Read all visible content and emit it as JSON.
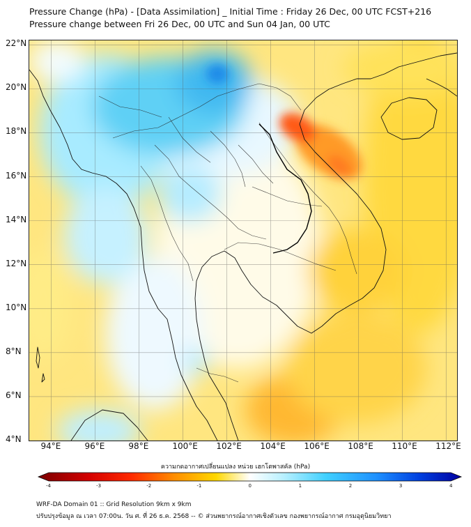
{
  "title": {
    "line1": "Pressure Change (hPa) - [Data Assimilation] _ Initial Time : Friday 26 Dec, 00 UTC FCST+216",
    "line2": "Pressure change between Fri 26 Dec, 00 UTC and Sun 04 Jan, 00 UTC"
  },
  "map": {
    "lon_range": [
      93,
      112.5
    ],
    "lat_range": [
      4,
      22.2
    ],
    "x_ticks": [
      "94°E",
      "96°E",
      "98°E",
      "100°E",
      "102°E",
      "104°E",
      "106°E",
      "108°E",
      "110°E",
      "112°E"
    ],
    "x_tick_values": [
      94,
      96,
      98,
      100,
      102,
      104,
      106,
      108,
      110,
      112
    ],
    "y_ticks": [
      "22°N",
      "20°N",
      "18°N",
      "16°N",
      "14°N",
      "12°N",
      "10°N",
      "8°N",
      "6°N",
      "4°N"
    ],
    "y_tick_values": [
      22,
      20,
      18,
      16,
      14,
      12,
      10,
      8,
      6,
      4
    ],
    "grid": true,
    "field": "pressure change (hPa)"
  },
  "colorbar": {
    "title": "ความกดอากาศเปลี่ยนแปลง หน่วย เฮกโตพาสคัล (hPa)",
    "min": -4,
    "max": 4,
    "tick_labels": [
      "-4",
      "-3",
      "-2",
      "-1",
      "0",
      "1",
      "2",
      "3",
      "4"
    ],
    "colors": {
      "neg_strong": "#7a0000",
      "neg_mid": "#ff2a00",
      "neg_light": "#ffc800",
      "zero": "#ffffff",
      "pos_light": "#7fe5ff",
      "pos_mid": "#1ea0ff",
      "pos_strong": "#0000a0"
    }
  },
  "footer": {
    "line1": "WRF-DA Domain 01 :: Grid Resolution 9km x 9km",
    "line2": "ปรับปรุงข้อมูล ณ เวลา 07:00น. วัน ศ. ที่ 26 ธ.ค. 2568 -- © ส่วนพยากรณ์อากาศเชิงตัวเลข กองพยากรณ์อากาศ กรมอุตุนิยมวิทยา"
  }
}
